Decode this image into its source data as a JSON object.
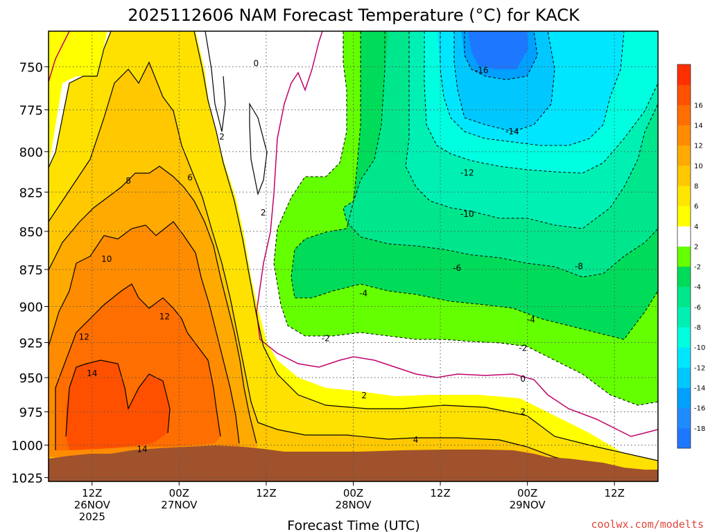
{
  "chart_data": {
    "type": "heatmap",
    "title": "2025112606 NAM Forecast Temperature (°C) for KACK",
    "xlabel": "Forecast Time (UTC)",
    "ylabel": "",
    "credit": "coolwx.com/modelts",
    "y_scale": "log-pressure (inverted)",
    "y_ticks": [
      750,
      775,
      800,
      825,
      850,
      875,
      900,
      925,
      950,
      975,
      1000,
      1025
    ],
    "ylim": [
      730,
      1028
    ],
    "x_ticks": [
      {
        "hour": 6,
        "label": [
          "12Z",
          "26NOV",
          "2025"
        ]
      },
      {
        "hour": 18,
        "label": [
          "00Z",
          "27NOV"
        ]
      },
      {
        "hour": 30,
        "label": [
          "12Z"
        ]
      },
      {
        "hour": 42,
        "label": [
          "00Z",
          "28NOV"
        ]
      },
      {
        "hour": 54,
        "label": [
          "12Z"
        ]
      },
      {
        "hour": 66,
        "label": [
          "00Z",
          "29NOV"
        ]
      },
      {
        "hour": 78,
        "label": [
          "12Z"
        ]
      }
    ],
    "xlim": [
      0,
      84
    ],
    "grid": true,
    "colorbar": {
      "levels": [
        -20,
        -18,
        -16,
        -14,
        -12,
        -10,
        -8,
        -6,
        -4,
        -2,
        2,
        4,
        6,
        8,
        10,
        12,
        14,
        16,
        18
      ],
      "tick_labels": [
        "-18",
        "-16",
        "-14",
        "-12",
        "-10",
        "-8",
        "-6",
        "-4",
        "-2",
        "2",
        "4",
        "6",
        "8",
        "10",
        "12",
        "14",
        "16"
      ],
      "colors": [
        "#1e78ff",
        "#1e8cff",
        "#00a0ff",
        "#00c8ff",
        "#00e6ff",
        "#00ffe0",
        "#00f0b4",
        "#00e68c",
        "#00dc5a",
        "#64ff00",
        "#ffffff",
        "#ffff00",
        "#ffe600",
        "#ffc800",
        "#ffaa00",
        "#ff8c00",
        "#ff6e00",
        "#ff5000",
        "#ff3000"
      ]
    },
    "contour_labels": [
      {
        "text": "0",
        "t": 28.6,
        "p": 748
      },
      {
        "text": "2",
        "t": 23.9,
        "p": 791
      },
      {
        "text": "2",
        "t": 29.6,
        "p": 838
      },
      {
        "text": "6",
        "t": 19.5,
        "p": 816
      },
      {
        "text": "8",
        "t": 11.0,
        "p": 818
      },
      {
        "text": "10",
        "t": 8.0,
        "p": 868
      },
      {
        "text": "12",
        "t": 16.0,
        "p": 907
      },
      {
        "text": "12",
        "t": 4.9,
        "p": 921
      },
      {
        "text": "14",
        "t": 6.0,
        "p": 947
      },
      {
        "text": "14",
        "t": 12.9,
        "p": 1003
      },
      {
        "text": "-16",
        "t": 59.7,
        "p": 752
      },
      {
        "text": "-14",
        "t": 63.9,
        "p": 788
      },
      {
        "text": "-12",
        "t": 57.7,
        "p": 813
      },
      {
        "text": "-10",
        "t": 57.7,
        "p": 839
      },
      {
        "text": "-8",
        "t": 73.1,
        "p": 873
      },
      {
        "text": "-6",
        "t": 56.3,
        "p": 874
      },
      {
        "text": "-4",
        "t": 43.4,
        "p": 891
      },
      {
        "text": "-4",
        "t": 66.5,
        "p": 909
      },
      {
        "text": "-2",
        "t": 38.2,
        "p": 922
      },
      {
        "text": "-2",
        "t": 65.4,
        "p": 929
      },
      {
        "text": "0",
        "t": 65.4,
        "p": 951
      },
      {
        "text": "2",
        "t": 43.5,
        "p": 963
      },
      {
        "text": "2",
        "t": 65.4,
        "p": 975
      },
      {
        "text": "4",
        "t": 50.6,
        "p": 996
      }
    ]
  }
}
